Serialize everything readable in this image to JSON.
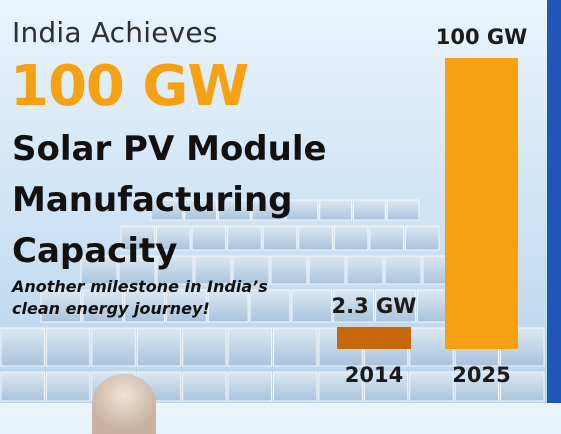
{
  "headline": {
    "pre": "India Achieves",
    "big": "100 GW",
    "lines": [
      "Solar PV Module",
      "Manufacturing",
      "Capacity"
    ],
    "tagline": [
      "Another milestone in India’s",
      "clean energy journey!"
    ]
  },
  "colors": {
    "accent": "#f7a012",
    "bar_2014": "#c8660a",
    "bar_2025": "#f7a012",
    "frame": "#1f56b8"
  },
  "chart_data": {
    "type": "bar",
    "categories": [
      "2014",
      "2025"
    ],
    "values": [
      2.3,
      100
    ],
    "data_labels": [
      "2.3 GW",
      "100 GW"
    ],
    "unit": "GW",
    "title": "",
    "xlabel": "",
    "ylabel": "",
    "ylim": [
      0,
      100
    ],
    "grid": false
  }
}
